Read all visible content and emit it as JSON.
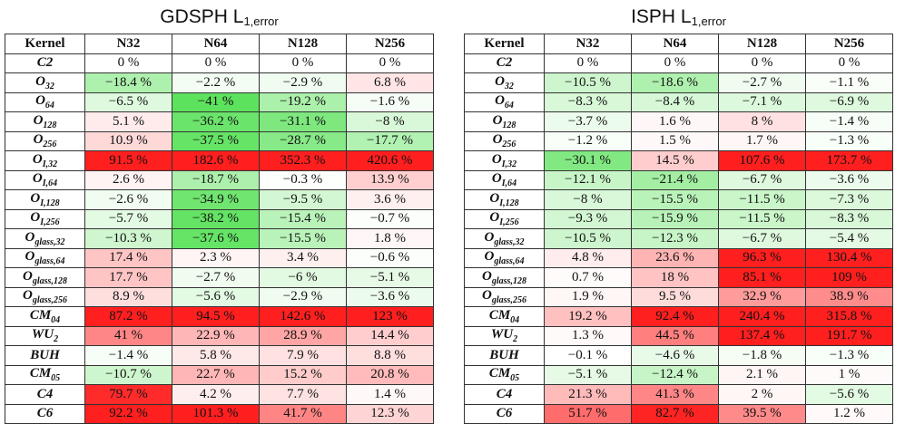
{
  "colors": {
    "neg_max": "#5de25d",
    "pos_max": "#ff1f1f",
    "zero": "#ffffff"
  },
  "tables": [
    {
      "title_main": "GDSPH L",
      "title_sub": "1,error",
      "header": [
        "Kernel",
        "N32",
        "N64",
        "N128",
        "N256"
      ],
      "rows": [
        {
          "kernel": "C2",
          "kernel_sub": "",
          "cells": [
            {
              "text": "0 %",
              "v": 0
            },
            {
              "text": "0 %",
              "v": 0
            },
            {
              "text": "0 %",
              "v": 0
            },
            {
              "text": "0 %",
              "v": 0
            }
          ]
        },
        {
          "kernel": "O",
          "kernel_sub": "32",
          "cells": [
            {
              "text": "−18.4 %",
              "v": -18.4
            },
            {
              "text": "−2.2 %",
              "v": -2.2
            },
            {
              "text": "−2.9 %",
              "v": -2.9
            },
            {
              "text": "6.8 %",
              "v": 6.8
            }
          ]
        },
        {
          "kernel": "O",
          "kernel_sub": "64",
          "cells": [
            {
              "text": "−6.5 %",
              "v": -6.5
            },
            {
              "text": "−41 %",
              "v": -41
            },
            {
              "text": "−19.2 %",
              "v": -19.2
            },
            {
              "text": "−1.6 %",
              "v": -1.6
            }
          ]
        },
        {
          "kernel": "O",
          "kernel_sub": "128",
          "cells": [
            {
              "text": "5.1 %",
              "v": 5.1
            },
            {
              "text": "−36.2 %",
              "v": -36.2
            },
            {
              "text": "−31.1 %",
              "v": -31.1
            },
            {
              "text": "−8 %",
              "v": -8
            }
          ]
        },
        {
          "kernel": "O",
          "kernel_sub": "256",
          "cells": [
            {
              "text": "10.9 %",
              "v": 10.9
            },
            {
              "text": "−37.5 %",
              "v": -37.5
            },
            {
              "text": "−28.7 %",
              "v": -28.7
            },
            {
              "text": "−17.7 %",
              "v": -17.7
            }
          ]
        },
        {
          "kernel": "O",
          "kernel_sub": "I,32",
          "cells": [
            {
              "text": "91.5 %",
              "v": 91.5
            },
            {
              "text": "182.6 %",
              "v": 182.6
            },
            {
              "text": "352.3 %",
              "v": 352.3
            },
            {
              "text": "420.6 %",
              "v": 420.6
            }
          ]
        },
        {
          "kernel": "O",
          "kernel_sub": "I,64",
          "cells": [
            {
              "text": "2.6 %",
              "v": 2.6
            },
            {
              "text": "−18.7 %",
              "v": -18.7
            },
            {
              "text": "−0.3 %",
              "v": -0.3
            },
            {
              "text": "13.9 %",
              "v": 13.9
            }
          ]
        },
        {
          "kernel": "O",
          "kernel_sub": "I,128",
          "cells": [
            {
              "text": "−2.6 %",
              "v": -2.6
            },
            {
              "text": "−34.9 %",
              "v": -34.9
            },
            {
              "text": "−9.5 %",
              "v": -9.5
            },
            {
              "text": "3.6 %",
              "v": 3.6
            }
          ]
        },
        {
          "kernel": "O",
          "kernel_sub": "I,256",
          "cells": [
            {
              "text": "−5.7 %",
              "v": -5.7
            },
            {
              "text": "−38.2 %",
              "v": -38.2
            },
            {
              "text": "−15.4 %",
              "v": -15.4
            },
            {
              "text": "−0.7 %",
              "v": -0.7
            }
          ]
        },
        {
          "kernel": "O",
          "kernel_sub": "glass,32",
          "cells": [
            {
              "text": "−10.3 %",
              "v": -10.3
            },
            {
              "text": "−37.6 %",
              "v": -37.6
            },
            {
              "text": "−15.5 %",
              "v": -15.5
            },
            {
              "text": "1.8 %",
              "v": 1.8
            }
          ]
        },
        {
          "kernel": "O",
          "kernel_sub": "glass,64",
          "cells": [
            {
              "text": "17.4 %",
              "v": 17.4
            },
            {
              "text": "2.3 %",
              "v": 2.3
            },
            {
              "text": "3.4 %",
              "v": 3.4
            },
            {
              "text": "−0.6 %",
              "v": -0.6
            }
          ]
        },
        {
          "kernel": "O",
          "kernel_sub": "glass,128",
          "cells": [
            {
              "text": "17.7 %",
              "v": 17.7
            },
            {
              "text": "−2.7 %",
              "v": -2.7
            },
            {
              "text": "−6 %",
              "v": -6
            },
            {
              "text": "−5.1 %",
              "v": -5.1
            }
          ]
        },
        {
          "kernel": "O",
          "kernel_sub": "glass,256",
          "cells": [
            {
              "text": "8.9 %",
              "v": 8.9
            },
            {
              "text": "−5.6 %",
              "v": -5.6
            },
            {
              "text": "−2.9 %",
              "v": -2.9
            },
            {
              "text": "−3.6 %",
              "v": -3.6
            }
          ]
        },
        {
          "kernel": "CM",
          "kernel_sub": "04",
          "cells": [
            {
              "text": "87.2 %",
              "v": 87.2
            },
            {
              "text": "94.5 %",
              "v": 94.5
            },
            {
              "text": "142.6 %",
              "v": 142.6
            },
            {
              "text": "123 %",
              "v": 123
            }
          ]
        },
        {
          "kernel": "WU",
          "kernel_sub": "2",
          "cells": [
            {
              "text": "41 %",
              "v": 41
            },
            {
              "text": "22.9 %",
              "v": 22.9
            },
            {
              "text": "28.9 %",
              "v": 28.9
            },
            {
              "text": "14.4 %",
              "v": 14.4
            }
          ]
        },
        {
          "kernel": "BUH",
          "kernel_sub": "",
          "cells": [
            {
              "text": "−1.4 %",
              "v": -1.4
            },
            {
              "text": "5.8 %",
              "v": 5.8
            },
            {
              "text": "7.9 %",
              "v": 7.9
            },
            {
              "text": "8.8 %",
              "v": 8.8
            }
          ]
        },
        {
          "kernel": "CM",
          "kernel_sub": "05",
          "cells": [
            {
              "text": "−10.7 %",
              "v": -10.7
            },
            {
              "text": "22.7 %",
              "v": 22.7
            },
            {
              "text": "15.2 %",
              "v": 15.2
            },
            {
              "text": "20.8 %",
              "v": 20.8
            }
          ]
        },
        {
          "kernel": "C4",
          "kernel_sub": "",
          "cells": [
            {
              "text": "79.7 %",
              "v": 79.7
            },
            {
              "text": "4.2 %",
              "v": 4.2
            },
            {
              "text": "7.7 %",
              "v": 7.7
            },
            {
              "text": "1.4 %",
              "v": 1.4
            }
          ]
        },
        {
          "kernel": "C6",
          "kernel_sub": "",
          "cells": [
            {
              "text": "92.2 %",
              "v": 92.2
            },
            {
              "text": "101.3 %",
              "v": 101.3
            },
            {
              "text": "41.7 %",
              "v": 41.7
            },
            {
              "text": "12.3 %",
              "v": 12.3
            }
          ]
        }
      ]
    },
    {
      "title_main": "ISPH L",
      "title_sub": "1,error",
      "header": [
        "Kernel",
        "N32",
        "N64",
        "N128",
        "N256"
      ],
      "rows": [
        {
          "kernel": "C2",
          "kernel_sub": "",
          "cells": [
            {
              "text": "0 %",
              "v": 0
            },
            {
              "text": "0 %",
              "v": 0
            },
            {
              "text": "0 %",
              "v": 0
            },
            {
              "text": "0 %",
              "v": 0
            }
          ]
        },
        {
          "kernel": "O",
          "kernel_sub": "32",
          "cells": [
            {
              "text": "−10.5 %",
              "v": -10.5
            },
            {
              "text": "−18.6 %",
              "v": -18.6
            },
            {
              "text": "−2.7 %",
              "v": -2.7
            },
            {
              "text": "−1.1 %",
              "v": -1.1
            }
          ]
        },
        {
          "kernel": "O",
          "kernel_sub": "64",
          "cells": [
            {
              "text": "−8.3 %",
              "v": -8.3
            },
            {
              "text": "−8.4 %",
              "v": -8.4
            },
            {
              "text": "−7.1 %",
              "v": -7.1
            },
            {
              "text": "−6.9 %",
              "v": -6.9
            }
          ]
        },
        {
          "kernel": "O",
          "kernel_sub": "128",
          "cells": [
            {
              "text": "−3.7 %",
              "v": -3.7
            },
            {
              "text": "1.6 %",
              "v": 1.6
            },
            {
              "text": "8 %",
              "v": 8
            },
            {
              "text": "−1.4 %",
              "v": -1.4
            }
          ]
        },
        {
          "kernel": "O",
          "kernel_sub": "256",
          "cells": [
            {
              "text": "−1.2 %",
              "v": -1.2
            },
            {
              "text": "1.5 %",
              "v": 1.5
            },
            {
              "text": "1.7 %",
              "v": 1.7
            },
            {
              "text": "−1.3 %",
              "v": -1.3
            }
          ]
        },
        {
          "kernel": "O",
          "kernel_sub": "I,32",
          "cells": [
            {
              "text": "−30.1 %",
              "v": -30.1
            },
            {
              "text": "14.5 %",
              "v": 14.5
            },
            {
              "text": "107.6 %",
              "v": 107.6
            },
            {
              "text": "173.7 %",
              "v": 173.7
            }
          ]
        },
        {
          "kernel": "O",
          "kernel_sub": "I,64",
          "cells": [
            {
              "text": "−12.1 %",
              "v": -12.1
            },
            {
              "text": "−21.4 %",
              "v": -21.4
            },
            {
              "text": "−6.7 %",
              "v": -6.7
            },
            {
              "text": "−3.6 %",
              "v": -3.6
            }
          ]
        },
        {
          "kernel": "O",
          "kernel_sub": "I,128",
          "cells": [
            {
              "text": "−8 %",
              "v": -8
            },
            {
              "text": "−15.5 %",
              "v": -15.5
            },
            {
              "text": "−11.5 %",
              "v": -11.5
            },
            {
              "text": "−7.3 %",
              "v": -7.3
            }
          ]
        },
        {
          "kernel": "O",
          "kernel_sub": "I,256",
          "cells": [
            {
              "text": "−9.3 %",
              "v": -9.3
            },
            {
              "text": "−15.9 %",
              "v": -15.9
            },
            {
              "text": "−11.5 %",
              "v": -11.5
            },
            {
              "text": "−8.3 %",
              "v": -8.3
            }
          ]
        },
        {
          "kernel": "O",
          "kernel_sub": "glass,32",
          "cells": [
            {
              "text": "−10.5 %",
              "v": -10.5
            },
            {
              "text": "−12.3 %",
              "v": -12.3
            },
            {
              "text": "−6.7 %",
              "v": -6.7
            },
            {
              "text": "−5.4 %",
              "v": -5.4
            }
          ]
        },
        {
          "kernel": "O",
          "kernel_sub": "glass,64",
          "cells": [
            {
              "text": "4.8 %",
              "v": 4.8
            },
            {
              "text": "23.6 %",
              "v": 23.6
            },
            {
              "text": "96.3 %",
              "v": 96.3
            },
            {
              "text": "130.4 %",
              "v": 130.4
            }
          ]
        },
        {
          "kernel": "O",
          "kernel_sub": "glass,128",
          "cells": [
            {
              "text": "0.7 %",
              "v": 0.7
            },
            {
              "text": "18 %",
              "v": 18
            },
            {
              "text": "85.1 %",
              "v": 85.1
            },
            {
              "text": "109 %",
              "v": 109
            }
          ]
        },
        {
          "kernel": "O",
          "kernel_sub": "glass,256",
          "cells": [
            {
              "text": "1.9 %",
              "v": 1.9
            },
            {
              "text": "9.5 %",
              "v": 9.5
            },
            {
              "text": "32.9 %",
              "v": 32.9
            },
            {
              "text": "38.9 %",
              "v": 38.9
            }
          ]
        },
        {
          "kernel": "CM",
          "kernel_sub": "04",
          "cells": [
            {
              "text": "19.2 %",
              "v": 19.2
            },
            {
              "text": "92.4 %",
              "v": 92.4
            },
            {
              "text": "240.4 %",
              "v": 240.4
            },
            {
              "text": "315.8 %",
              "v": 315.8
            }
          ]
        },
        {
          "kernel": "WU",
          "kernel_sub": "2",
          "cells": [
            {
              "text": "1.3 %",
              "v": 1.3
            },
            {
              "text": "44.5 %",
              "v": 44.5
            },
            {
              "text": "137.4 %",
              "v": 137.4
            },
            {
              "text": "191.7 %",
              "v": 191.7
            }
          ]
        },
        {
          "kernel": "BUH",
          "kernel_sub": "",
          "cells": [
            {
              "text": "−0.1 %",
              "v": -0.1
            },
            {
              "text": "−4.6 %",
              "v": -4.6
            },
            {
              "text": "−1.8 %",
              "v": -1.8
            },
            {
              "text": "−1.3 %",
              "v": -1.3
            }
          ]
        },
        {
          "kernel": "CM",
          "kernel_sub": "05",
          "cells": [
            {
              "text": "−5.1 %",
              "v": -5.1
            },
            {
              "text": "−12.4 %",
              "v": -12.4
            },
            {
              "text": "2.1 %",
              "v": 2.1
            },
            {
              "text": "1 %",
              "v": 1
            }
          ]
        },
        {
          "kernel": "C4",
          "kernel_sub": "",
          "cells": [
            {
              "text": "21.3 %",
              "v": 21.3
            },
            {
              "text": "41.3 %",
              "v": 41.3
            },
            {
              "text": "2 %",
              "v": 2
            },
            {
              "text": "−5.6 %",
              "v": -5.6
            }
          ]
        },
        {
          "kernel": "C6",
          "kernel_sub": "",
          "cells": [
            {
              "text": "51.7 %",
              "v": 51.7
            },
            {
              "text": "82.7 %",
              "v": 82.7
            },
            {
              "text": "39.5 %",
              "v": 39.5
            },
            {
              "text": "1.2 %",
              "v": 1.2
            }
          ]
        }
      ]
    }
  ]
}
